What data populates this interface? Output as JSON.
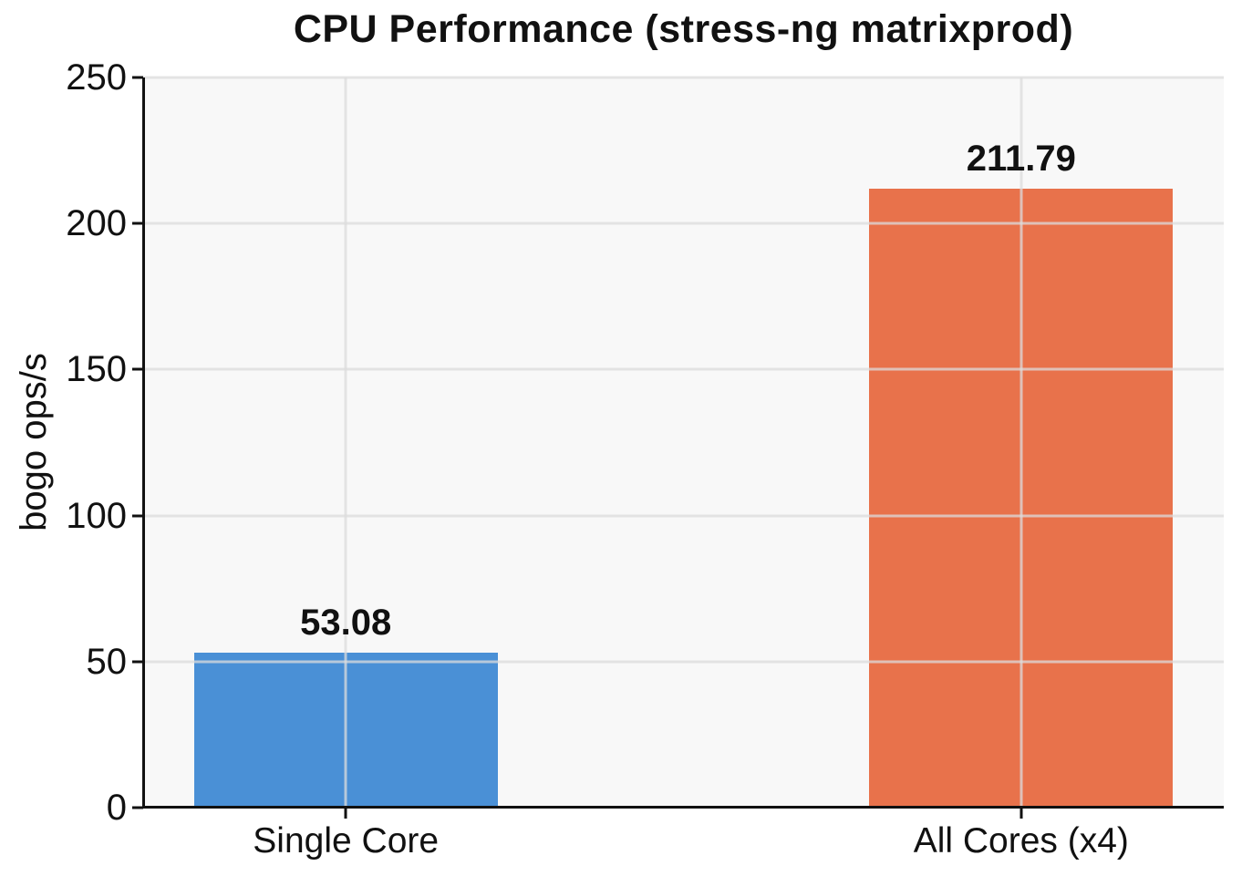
{
  "chart_data": {
    "type": "bar",
    "title": "CPU Performance (stress-ng matrixprod)",
    "categories": [
      "Single Core",
      "All Cores (x4)"
    ],
    "values": [
      53.08,
      211.79
    ],
    "value_labels": [
      "53.08",
      "211.79"
    ],
    "bar_colors": [
      "#4a90d6",
      "#e8724b"
    ],
    "xlabel": "",
    "ylabel": "bogo ops/s",
    "ylim": [
      0,
      250
    ],
    "xlim": [
      -0.3,
      1.3
    ],
    "yticks": [
      0,
      50,
      100,
      150,
      200,
      250
    ],
    "ytick_labels": [
      "0",
      "50",
      "100",
      "150",
      "200",
      "250"
    ],
    "bar_width_frac": 0.45,
    "grid": true,
    "grid_over_bars": true,
    "legend_position": "none",
    "colors": {
      "plot_bg": "#f8f8f8",
      "grid_color": "rgba(220,220,220,0.75)",
      "spine_color": "#111111",
      "text_color": "#111111",
      "figure_bg": "#ffffff"
    }
  }
}
